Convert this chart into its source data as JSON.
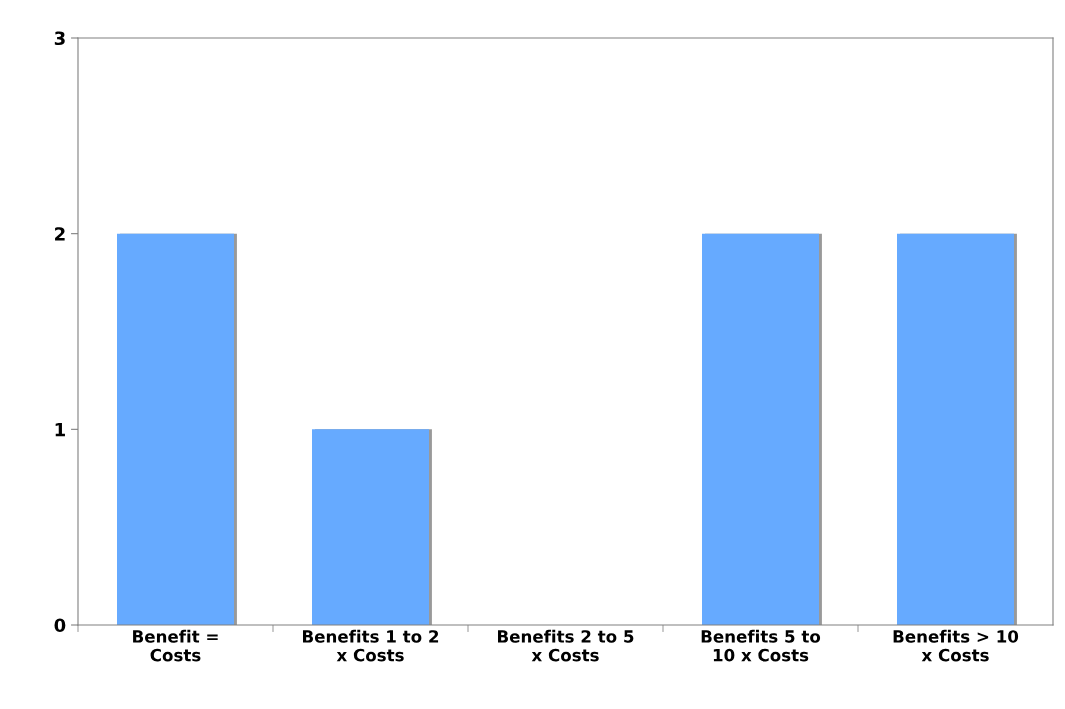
{
  "chart_data": {
    "type": "bar",
    "categories": [
      "Benefit =\nCosts",
      "Benefits 1 to 2\nx Costs",
      "Benefits 2 to 5\nx Costs",
      "Benefits 5 to\n10 x Costs",
      "Benefits > 10\nx Costs"
    ],
    "values": [
      2,
      1,
      0,
      2,
      2
    ],
    "color": "#66aaff",
    "ylim": [
      0,
      3
    ],
    "yticks": [
      0,
      1,
      2,
      3
    ],
    "grid": false,
    "legend": false
  }
}
